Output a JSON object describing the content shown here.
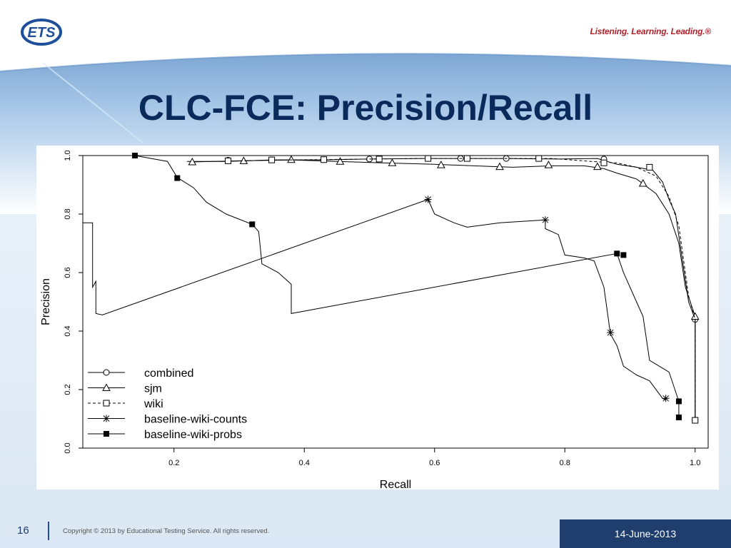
{
  "brand": {
    "logo_text": "ETS",
    "tagline": "Listening. Learning. Leading.®"
  },
  "title": "CLC-FCE: Precision/Recall",
  "footer": {
    "slide_number": "16",
    "copyright": "Copyright © 2013 by Educational Testing Service. All rights reserved.",
    "date": "14-June-2013"
  },
  "colors": {
    "title": "#0b2a5c",
    "tagline": "#b0202a",
    "footer_band": "#1f3e6d",
    "plot_lines": "#000000"
  },
  "chart_data": {
    "type": "line",
    "title": "",
    "xlabel": "Recall",
    "ylabel": "Precision",
    "xlim": [
      0.06,
      1.02
    ],
    "ylim": [
      0.0,
      1.0
    ],
    "xticks": [
      "0.2",
      "0.4",
      "0.6",
      "0.8",
      "1.0"
    ],
    "yticks": [
      "0.0",
      "0.2",
      "0.4",
      "0.6",
      "0.8",
      "1.0"
    ],
    "legend_position": "bottom-left",
    "series": [
      {
        "name": "combined",
        "marker": "circle",
        "dash": "solid",
        "points": [
          [
            0.22,
            0.98
          ],
          [
            0.28,
            0.98
          ],
          [
            0.35,
            0.985
          ],
          [
            0.42,
            0.985
          ],
          [
            0.5,
            0.988
          ],
          [
            0.58,
            0.99
          ],
          [
            0.64,
            0.99
          ],
          [
            0.71,
            0.99
          ],
          [
            0.79,
            0.988
          ],
          [
            0.85,
            0.99
          ],
          [
            0.88,
            0.97
          ],
          [
            0.91,
            0.96
          ],
          [
            0.935,
            0.95
          ],
          [
            0.95,
            0.91
          ],
          [
            0.96,
            0.85
          ],
          [
            0.97,
            0.8
          ],
          [
            0.98,
            0.65
          ],
          [
            0.99,
            0.5
          ],
          [
            1.0,
            0.44
          ],
          [
            1.0,
            0.095
          ]
        ],
        "markers": [
          [
            0.283,
            0.984
          ],
          [
            0.35,
            0.985
          ],
          [
            0.43,
            0.986
          ],
          [
            0.5,
            0.988
          ],
          [
            0.59,
            0.99
          ],
          [
            0.64,
            0.99
          ],
          [
            0.71,
            0.99
          ],
          [
            0.86,
            0.988
          ],
          [
            1.0,
            0.44
          ],
          [
            1.0,
            0.095
          ]
        ]
      },
      {
        "name": "sjm",
        "marker": "triangle",
        "dash": "solid",
        "points": [
          [
            0.225,
            0.978
          ],
          [
            0.3,
            0.982
          ],
          [
            0.38,
            0.985
          ],
          [
            0.45,
            0.98
          ],
          [
            0.52,
            0.975
          ],
          [
            0.6,
            0.97
          ],
          [
            0.66,
            0.965
          ],
          [
            0.72,
            0.96
          ],
          [
            0.78,
            0.965
          ],
          [
            0.83,
            0.965
          ],
          [
            0.86,
            0.955
          ],
          [
            0.88,
            0.94
          ],
          [
            0.91,
            0.92
          ],
          [
            0.94,
            0.87
          ],
          [
            0.96,
            0.8
          ],
          [
            0.975,
            0.7
          ],
          [
            0.985,
            0.55
          ],
          [
            1.0,
            0.45
          ],
          [
            1.0,
            0.095
          ]
        ],
        "markers": [
          [
            0.228,
            0.978
          ],
          [
            0.307,
            0.982
          ],
          [
            0.38,
            0.986
          ],
          [
            0.455,
            0.98
          ],
          [
            0.535,
            0.975
          ],
          [
            0.61,
            0.968
          ],
          [
            0.7,
            0.962
          ],
          [
            0.775,
            0.968
          ],
          [
            0.85,
            0.962
          ],
          [
            0.92,
            0.905
          ],
          [
            1.0,
            0.45
          ]
        ]
      },
      {
        "name": "wiki",
        "marker": "square",
        "dash": "dashed",
        "points": [
          [
            0.27,
            0.98
          ],
          [
            0.34,
            0.984
          ],
          [
            0.42,
            0.986
          ],
          [
            0.5,
            0.988
          ],
          [
            0.58,
            0.99
          ],
          [
            0.65,
            0.99
          ],
          [
            0.72,
            0.99
          ],
          [
            0.78,
            0.99
          ],
          [
            0.84,
            0.98
          ],
          [
            0.88,
            0.975
          ],
          [
            0.91,
            0.96
          ],
          [
            0.94,
            0.93
          ],
          [
            0.96,
            0.86
          ],
          [
            0.975,
            0.76
          ],
          [
            0.99,
            0.52
          ],
          [
            1.0,
            0.44
          ],
          [
            1.0,
            0.095
          ]
        ],
        "markers": [
          [
            0.283,
            0.982
          ],
          [
            0.35,
            0.985
          ],
          [
            0.43,
            0.986
          ],
          [
            0.515,
            0.988
          ],
          [
            0.59,
            0.99
          ],
          [
            0.65,
            0.99
          ],
          [
            0.76,
            0.99
          ],
          [
            0.86,
            0.975
          ],
          [
            0.93,
            0.96
          ],
          [
            1.0,
            0.095
          ]
        ]
      },
      {
        "name": "baseline-wiki-counts",
        "marker": "asterisk",
        "dash": "solid",
        "points": [
          [
            0.06,
            0.77
          ],
          [
            0.075,
            0.77
          ],
          [
            0.075,
            0.55
          ],
          [
            0.08,
            0.57
          ],
          [
            0.08,
            0.46
          ],
          [
            0.09,
            0.455
          ],
          [
            0.59,
            0.85
          ],
          [
            0.6,
            0.8
          ],
          [
            0.63,
            0.77
          ],
          [
            0.65,
            0.755
          ],
          [
            0.7,
            0.77
          ],
          [
            0.77,
            0.78
          ],
          [
            0.77,
            0.75
          ],
          [
            0.79,
            0.73
          ],
          [
            0.8,
            0.66
          ],
          [
            0.83,
            0.65
          ],
          [
            0.845,
            0.64
          ],
          [
            0.86,
            0.55
          ],
          [
            0.87,
            0.39
          ],
          [
            0.88,
            0.35
          ],
          [
            0.89,
            0.28
          ],
          [
            0.91,
            0.25
          ],
          [
            0.93,
            0.23
          ],
          [
            0.95,
            0.17
          ],
          [
            0.955,
            0.165
          ]
        ],
        "markers": [
          [
            0.59,
            0.85
          ],
          [
            0.77,
            0.78
          ],
          [
            0.87,
            0.395
          ],
          [
            0.955,
            0.17
          ]
        ]
      },
      {
        "name": "baseline-wiki-probs",
        "marker": "filled-square",
        "dash": "solid",
        "points": [
          [
            0.06,
            1.0
          ],
          [
            0.14,
            1.0
          ],
          [
            0.19,
            0.98
          ],
          [
            0.205,
            0.925
          ],
          [
            0.23,
            0.89
          ],
          [
            0.25,
            0.84
          ],
          [
            0.28,
            0.8
          ],
          [
            0.32,
            0.765
          ],
          [
            0.33,
            0.74
          ],
          [
            0.335,
            0.63
          ],
          [
            0.36,
            0.6
          ],
          [
            0.38,
            0.56
          ],
          [
            0.38,
            0.46
          ],
          [
            0.88,
            0.665
          ],
          [
            0.89,
            0.6
          ],
          [
            0.91,
            0.5
          ],
          [
            0.92,
            0.45
          ],
          [
            0.93,
            0.3
          ],
          [
            0.96,
            0.26
          ],
          [
            0.975,
            0.16
          ],
          [
            0.975,
            0.105
          ]
        ],
        "markers": [
          [
            0.14,
            1.0
          ],
          [
            0.205,
            0.923
          ],
          [
            0.32,
            0.765
          ],
          [
            0.88,
            0.665
          ],
          [
            0.89,
            0.66
          ],
          [
            0.975,
            0.16
          ],
          [
            0.975,
            0.105
          ]
        ]
      }
    ]
  }
}
